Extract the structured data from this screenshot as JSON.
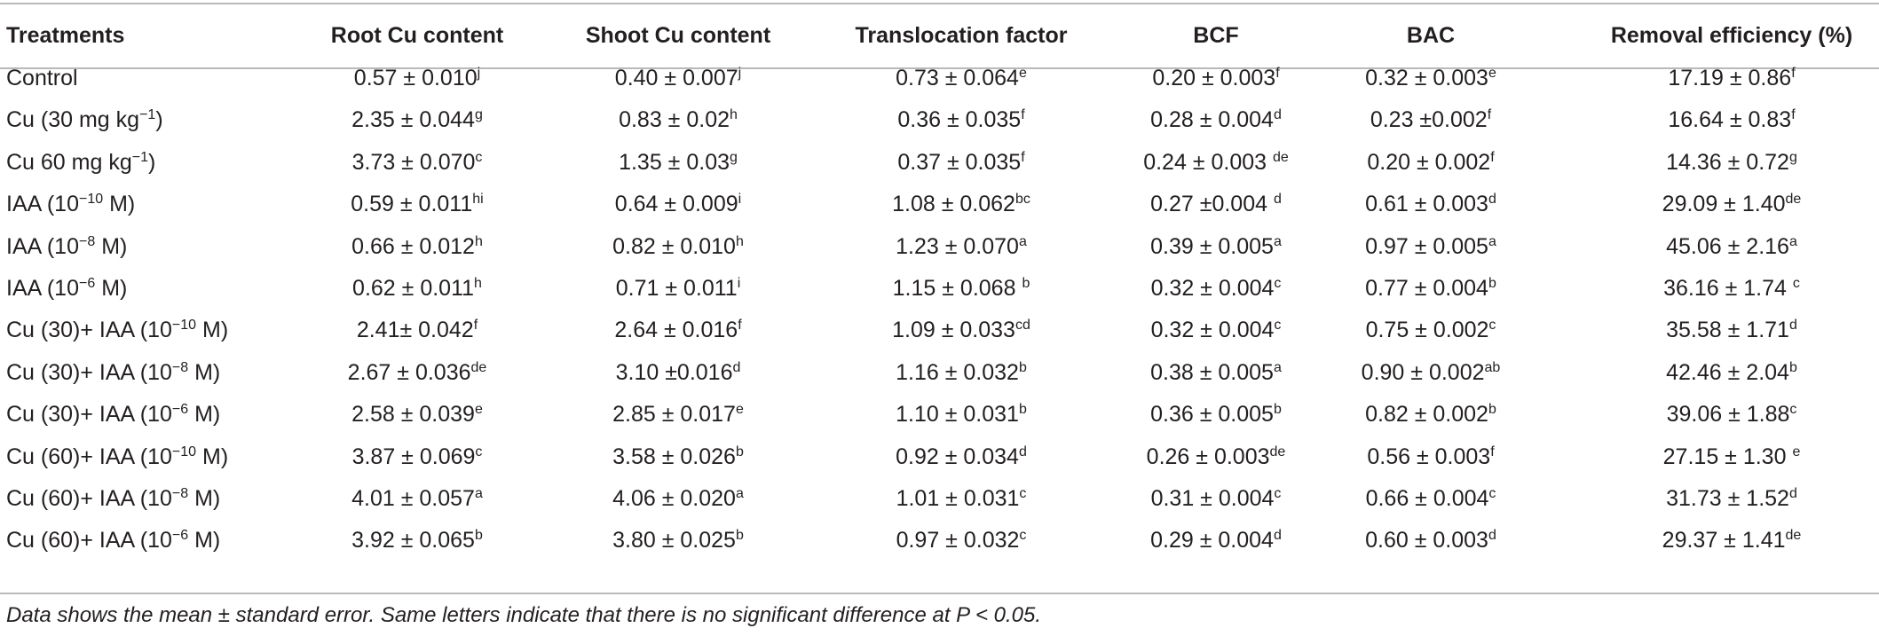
{
  "table": {
    "header": [
      "Treatments",
      "Root Cu content",
      "Shoot Cu content",
      "Translocation factor",
      "BCF",
      "BAC",
      "Removal efficiency (%)"
    ],
    "rows": [
      {
        "treatment": [
          "Control"
        ],
        "cells": [
          [
            "0.57 ± 0.010",
            "j"
          ],
          [
            "0.40 ± 0.007",
            "j"
          ],
          [
            "0.73 ± 0.064",
            "e"
          ],
          [
            "0.20 ± 0.003",
            "f"
          ],
          [
            "0.32 ± 0.003",
            "e"
          ],
          [
            "17.19 ± 0.86",
            "f"
          ]
        ]
      },
      {
        "treatment": [
          "Cu (30 mg kg",
          "−1",
          ")"
        ],
        "cells": [
          [
            "2.35 ± 0.044",
            "g"
          ],
          [
            "0.83 ± 0.02",
            "h"
          ],
          [
            "0.36 ± 0.035",
            "f"
          ],
          [
            "0.28 ± 0.004",
            "d"
          ],
          [
            "0.23 ±0.002",
            "f"
          ],
          [
            "16.64 ± 0.83",
            "f"
          ]
        ]
      },
      {
        "treatment": [
          "Cu 60 mg kg",
          "−1",
          ")"
        ],
        "cells": [
          [
            "3.73 ± 0.070",
            "c"
          ],
          [
            "1.35 ± 0.03",
            "g"
          ],
          [
            "0.37 ± 0.035",
            "f"
          ],
          [
            "0.24 ± 0.003 ",
            "de"
          ],
          [
            "0.20 ± 0.002",
            "f"
          ],
          [
            "14.36 ± 0.72",
            "g"
          ]
        ]
      },
      {
        "treatment": [
          "IAA (10",
          "−10",
          " M)"
        ],
        "cells": [
          [
            "0.59 ± 0.011",
            "hi"
          ],
          [
            "0.64 ± 0.009",
            "i"
          ],
          [
            "1.08 ± 0.062",
            "bc"
          ],
          [
            "0.27 ±0.004 ",
            "d"
          ],
          [
            "0.61 ± 0.003",
            "d"
          ],
          [
            "29.09 ± 1.40",
            "de"
          ]
        ]
      },
      {
        "treatment": [
          "IAA (10",
          "−8",
          " M)"
        ],
        "cells": [
          [
            "0.66 ± 0.012",
            "h"
          ],
          [
            "0.82 ± 0.010",
            "h"
          ],
          [
            "1.23 ± 0.070",
            "a"
          ],
          [
            "0.39 ± 0.005",
            "a"
          ],
          [
            "0.97 ± 0.005",
            "a"
          ],
          [
            "45.06 ± 2.16",
            "a"
          ]
        ]
      },
      {
        "treatment": [
          "IAA (10",
          "−6",
          " M)"
        ],
        "cells": [
          [
            "0.62 ± 0.011",
            "h"
          ],
          [
            "0.71 ± 0.011",
            "i"
          ],
          [
            "1.15 ± 0.068 ",
            "b"
          ],
          [
            "0.32 ± 0.004",
            "c"
          ],
          [
            "0.77 ± 0.004",
            "b"
          ],
          [
            "36.16 ± 1.74 ",
            "c"
          ]
        ]
      },
      {
        "treatment": [
          "Cu (30)+ IAA (10",
          "−10",
          " M)"
        ],
        "cells": [
          [
            "2.41± 0.042",
            "f"
          ],
          [
            "2.64 ± 0.016",
            "f"
          ],
          [
            "1.09 ± 0.033",
            "cd"
          ],
          [
            "0.32 ± 0.004",
            "c"
          ],
          [
            "0.75 ± 0.002",
            "c"
          ],
          [
            "35.58 ± 1.71",
            "d"
          ]
        ]
      },
      {
        "treatment": [
          "Cu (30)+ IAA (10",
          "−8",
          " M)"
        ],
        "cells": [
          [
            "2.67 ± 0.036",
            "de"
          ],
          [
            "3.10 ±0.016",
            "d"
          ],
          [
            "1.16 ± 0.032",
            "b"
          ],
          [
            "0.38 ± 0.005",
            "a"
          ],
          [
            "0.90 ± 0.002",
            "ab"
          ],
          [
            "42.46 ± 2.04",
            "b"
          ]
        ]
      },
      {
        "treatment": [
          "Cu (30)+ IAA (10",
          "−6",
          " M)"
        ],
        "cells": [
          [
            "2.58 ± 0.039",
            "e"
          ],
          [
            "2.85 ± 0.017",
            "e"
          ],
          [
            "1.10 ± 0.031",
            "b"
          ],
          [
            "0.36 ± 0.005",
            "b"
          ],
          [
            "0.82 ± 0.002",
            "b"
          ],
          [
            "39.06 ± 1.88",
            "c"
          ]
        ]
      },
      {
        "treatment": [
          "Cu (60)+ IAA (10",
          "−10",
          " M)"
        ],
        "cells": [
          [
            "3.87 ± 0.069",
            "c"
          ],
          [
            "3.58 ± 0.026",
            "b"
          ],
          [
            "0.92 ± 0.034",
            "d"
          ],
          [
            "0.26 ± 0.003",
            "de"
          ],
          [
            "0.56 ± 0.003",
            "f"
          ],
          [
            "27.15 ± 1.30 ",
            "e"
          ]
        ]
      },
      {
        "treatment": [
          "Cu (60)+ IAA (10",
          "−8",
          " M)"
        ],
        "cells": [
          [
            "4.01 ± 0.057",
            "a"
          ],
          [
            "4.06 ± 0.020",
            "a"
          ],
          [
            "1.01 ± 0.031",
            "c"
          ],
          [
            "0.31 ± 0.004",
            "c"
          ],
          [
            "0.66 ± 0.004",
            "c"
          ],
          [
            "31.73 ± 1.52",
            "d"
          ]
        ]
      },
      {
        "treatment": [
          "Cu (60)+ IAA (10",
          "−6",
          " M)"
        ],
        "cells": [
          [
            "3.92 ± 0.065",
            "b"
          ],
          [
            "3.80 ± 0.025",
            "b"
          ],
          [
            "0.97 ± 0.032",
            "c"
          ],
          [
            "0.29 ± 0.004",
            "d"
          ],
          [
            "0.60 ± 0.003",
            "d"
          ],
          [
            "29.37 ± 1.41",
            "de"
          ]
        ]
      }
    ],
    "caption": "Data shows the mean ± standard error. Same letters indicate that there is no significant difference at P < 0.05."
  }
}
